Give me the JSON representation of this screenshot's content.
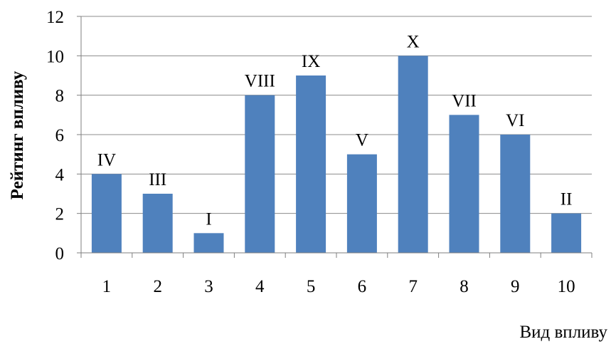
{
  "chart_data": {
    "type": "bar",
    "categories": [
      "1",
      "2",
      "3",
      "4",
      "5",
      "6",
      "7",
      "8",
      "9",
      "10"
    ],
    "values": [
      4,
      3,
      1,
      8,
      9,
      5,
      10,
      7,
      6,
      2
    ],
    "data_labels": [
      "IV",
      "III",
      "I",
      "VIII",
      "IX",
      "V",
      "X",
      "VII",
      "VI",
      "II"
    ],
    "title": "",
    "xlabel": "Вид впливу",
    "ylabel": "Рейтинг впливу",
    "ylim": [
      0,
      12
    ],
    "yticks": [
      0,
      2,
      4,
      6,
      8,
      10,
      12
    ],
    "grid": true,
    "bar_color": "#4f81bd"
  }
}
